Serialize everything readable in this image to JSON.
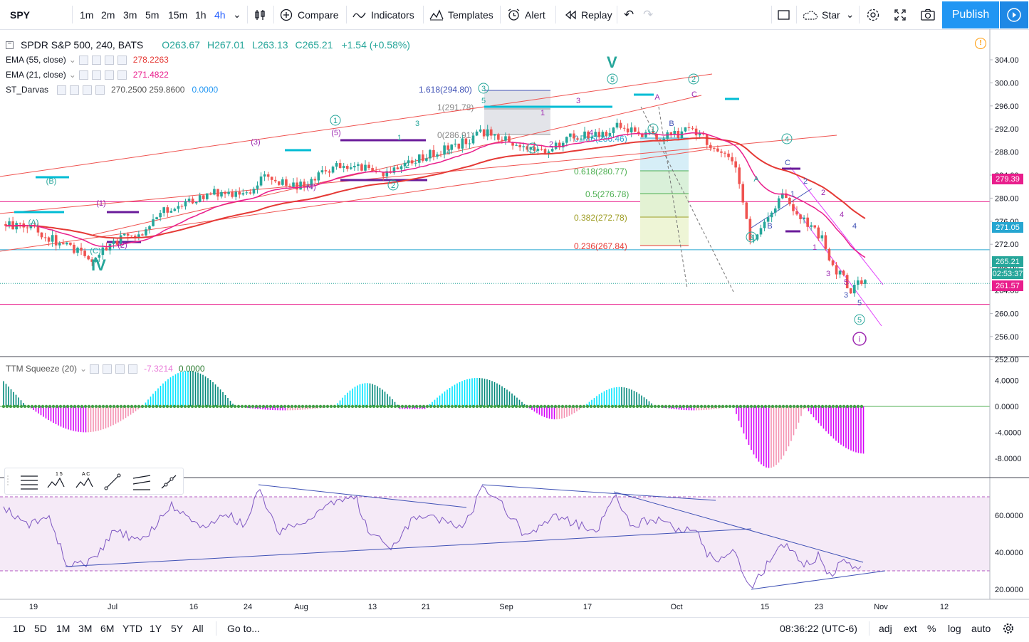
{
  "toolbar": {
    "symbol": "SPY",
    "intervals": [
      "1m",
      "2m",
      "3m",
      "5m",
      "15m",
      "1h",
      "4h"
    ],
    "active_interval": "4h",
    "compare": "Compare",
    "indicators": "Indicators",
    "templates": "Templates",
    "alert": "Alert",
    "replay": "Replay",
    "star": "Star",
    "publish": "Publish"
  },
  "legend": {
    "main": {
      "title": "SPDR S&P 500, 240, BATS",
      "open": "O263.67",
      "high": "H267.01",
      "low": "L263.13",
      "close": "C265.21",
      "change": "+1.54 (+0.58%)"
    },
    "studies": [
      {
        "name": "EMA (55, close)",
        "value": "278.2263",
        "color": "#e53935"
      },
      {
        "name": "EMA (21, close)",
        "value": "271.4822",
        "color": "#e91e8c"
      },
      {
        "name": "ST_Darvas",
        "value": "270.2500  259.8600",
        "value2": "0.0000",
        "color": "#555555",
        "color2": "#2196f3"
      }
    ],
    "ttm": {
      "name": "TTM Squeeze (20)",
      "value": "-7.3214",
      "value2": "0.0000"
    }
  },
  "price_axis": {
    "ticks": [
      "304.00",
      "300.00",
      "296.00",
      "292.00",
      "288.00",
      "284.00",
      "280.00",
      "276.00",
      "272.00",
      "268.00",
      "264.00",
      "260.00",
      "256.00",
      "252.00"
    ],
    "badges": [
      {
        "label": "279.39",
        "color": "#e91e8c"
      },
      {
        "label": "271.05",
        "color": "#26a6d1"
      },
      {
        "label": "265.21",
        "color": "#26a69a"
      },
      {
        "label": "02:53:37",
        "color": "#26a69a"
      },
      {
        "label": "261.57",
        "color": "#e91e8c"
      }
    ]
  },
  "ttm_axis": {
    "ticks": [
      "4.0000",
      "0.0000",
      "-4.0000",
      "-8.0000"
    ]
  },
  "rsi_axis": {
    "ticks": [
      "60.0000",
      "40.0000",
      "20.0000"
    ]
  },
  "time_axis": {
    "labels": [
      "19",
      "Jul",
      "16",
      "24",
      "Aug",
      "13",
      "21",
      "Sep",
      "17",
      "Oct",
      "15",
      "23",
      "Nov",
      "12"
    ]
  },
  "annotations": {
    "wave_IV": "IV",
    "wave_V": "V",
    "fib": [
      {
        "label": "1.618(294.80)",
        "color": "#3f51b5"
      },
      {
        "label": "1(291.78)",
        "color": "#888888"
      },
      {
        "label": "0(286.91)",
        "color": "#888888"
      },
      {
        "label": "0.786(286.46)",
        "color": "#26a6d1"
      },
      {
        "label": "0.618(280.77)",
        "color": "#4caf50"
      },
      {
        "label": "0.5(276.78)",
        "color": "#4caf50"
      },
      {
        "label": "0.382(272.78)",
        "color": "#9e9d24"
      },
      {
        "label": "0.236(267.84)",
        "color": "#e53935"
      }
    ]
  },
  "bottombar": {
    "ranges": [
      "1D",
      "5D",
      "1M",
      "3M",
      "6M",
      "YTD",
      "1Y",
      "5Y",
      "All"
    ],
    "goto": "Go to...",
    "clock": "08:36:22 (UTC-6)",
    "options": [
      "adj",
      "ext",
      "%",
      "log",
      "auto"
    ]
  },
  "colors": {
    "up": "#26a69a",
    "down": "#ef5350",
    "ema55": "#e53935",
    "ema21": "#e91e8c",
    "accent": "#2196f3",
    "rsi": "#7e57c2"
  }
}
